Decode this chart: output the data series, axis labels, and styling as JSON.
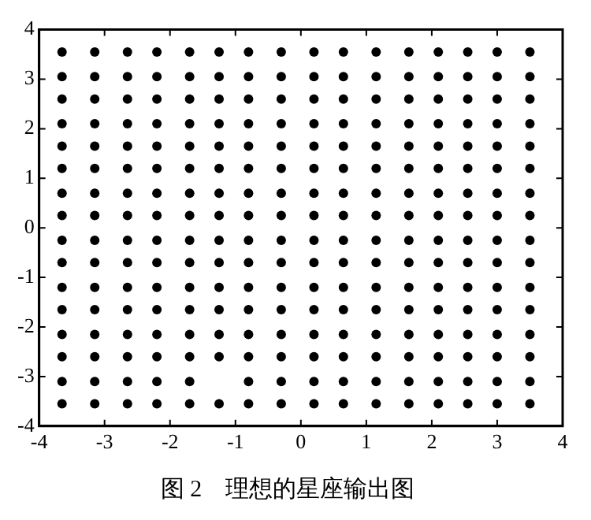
{
  "chart_data": {
    "type": "scatter",
    "title": "图 2　理想的星座输出图",
    "marker": "circle",
    "grid": false,
    "legend": false,
    "xlim": [
      -4,
      4
    ],
    "xticks": [
      -4,
      -3,
      -2,
      -1,
      0,
      1,
      2,
      3,
      4
    ],
    "ylim": [
      -4,
      4
    ],
    "yticks": [
      -4,
      -3,
      -2,
      -1,
      0,
      1,
      2,
      3,
      4
    ],
    "series": [
      {
        "color": "#000000",
        "x": [
          -3.65,
          -3.15,
          -2.65,
          -2.2,
          -1.7,
          -1.25,
          -0.8,
          -0.3,
          0.2,
          0.65,
          1.15,
          1.65,
          2.1,
          2.55,
          3.0,
          3.5
        ],
        "values": [
          3.55,
          3.55,
          3.55,
          3.55,
          3.55,
          3.55,
          3.55,
          3.55,
          3.55,
          3.55,
          3.55,
          3.55,
          3.55,
          3.55,
          3.55,
          3.55
        ]
      },
      {
        "color": "#000000",
        "x": [
          -3.65,
          -3.15,
          -2.65,
          -2.2,
          -1.7,
          -1.25,
          -0.8,
          -0.3,
          0.2,
          0.65,
          1.15,
          1.65,
          2.1,
          2.55,
          3.0,
          3.5
        ],
        "values": [
          3.05,
          3.05,
          3.05,
          3.05,
          3.05,
          3.05,
          3.05,
          3.05,
          3.05,
          3.05,
          3.05,
          3.05,
          3.05,
          3.05,
          3.05,
          3.05
        ]
      },
      {
        "color": "#000000",
        "x": [
          -3.65,
          -3.15,
          -2.65,
          -2.2,
          -1.7,
          -1.25,
          -0.8,
          -0.3,
          0.2,
          0.65,
          1.15,
          1.65,
          2.1,
          2.55,
          3.0,
          3.5
        ],
        "values": [
          2.6,
          2.6,
          2.6,
          2.6,
          2.6,
          2.6,
          2.6,
          2.6,
          2.6,
          2.6,
          2.6,
          2.6,
          2.6,
          2.6,
          2.6,
          2.6
        ]
      },
      {
        "color": "#000000",
        "x": [
          -3.65,
          -3.15,
          -2.65,
          -2.2,
          -1.7,
          -1.25,
          -0.8,
          -0.3,
          0.2,
          0.65,
          1.15,
          1.65,
          2.1,
          2.55,
          3.0,
          3.5
        ],
        "values": [
          2.1,
          2.1,
          2.1,
          2.1,
          2.1,
          2.1,
          2.1,
          2.1,
          2.1,
          2.1,
          2.1,
          2.1,
          2.1,
          2.1,
          2.1,
          2.1
        ]
      },
      {
        "color": "#000000",
        "x": [
          -3.65,
          -3.15,
          -2.65,
          -2.2,
          -1.7,
          -1.25,
          -0.8,
          -0.3,
          0.2,
          0.65,
          1.15,
          1.65,
          2.1,
          2.55,
          3.0,
          3.5
        ],
        "values": [
          1.65,
          1.65,
          1.65,
          1.65,
          1.65,
          1.65,
          1.65,
          1.65,
          1.65,
          1.65,
          1.65,
          1.65,
          1.65,
          1.65,
          1.65,
          1.65
        ]
      },
      {
        "color": "#000000",
        "x": [
          -3.65,
          -3.15,
          -2.65,
          -2.2,
          -1.7,
          -1.25,
          -0.8,
          -0.3,
          0.2,
          0.65,
          1.15,
          1.65,
          2.1,
          2.55,
          3.0,
          3.5
        ],
        "values": [
          1.2,
          1.2,
          1.2,
          1.2,
          1.2,
          1.2,
          1.2,
          1.2,
          1.2,
          1.2,
          1.2,
          1.2,
          1.2,
          1.2,
          1.2,
          1.2
        ]
      },
      {
        "color": "#000000",
        "x": [
          -3.65,
          -3.15,
          -2.65,
          -2.2,
          -1.7,
          -1.25,
          -0.8,
          -0.3,
          0.2,
          0.65,
          1.15,
          1.65,
          2.1,
          2.55,
          3.0,
          3.5
        ],
        "values": [
          0.7,
          0.7,
          0.7,
          0.7,
          0.7,
          0.7,
          0.7,
          0.7,
          0.7,
          0.7,
          0.7,
          0.7,
          0.7,
          0.7,
          0.7,
          0.7
        ]
      },
      {
        "color": "#000000",
        "x": [
          -3.65,
          -3.15,
          -2.65,
          -2.2,
          -1.7,
          -1.25,
          -0.8,
          -0.3,
          0.2,
          0.65,
          1.15,
          1.65,
          2.1,
          2.55,
          3.0,
          3.5
        ],
        "values": [
          0.25,
          0.25,
          0.25,
          0.25,
          0.25,
          0.25,
          0.25,
          0.25,
          0.25,
          0.25,
          0.25,
          0.25,
          0.25,
          0.25,
          0.25,
          0.25
        ]
      },
      {
        "color": "#000000",
        "x": [
          -3.65,
          -3.15,
          -2.65,
          -2.2,
          -1.7,
          -1.25,
          -0.8,
          -0.3,
          0.2,
          0.65,
          1.15,
          1.65,
          2.1,
          2.55,
          3.0,
          3.5
        ],
        "values": [
          -0.25,
          -0.25,
          -0.25,
          -0.25,
          -0.25,
          -0.25,
          -0.25,
          -0.25,
          -0.25,
          -0.25,
          -0.25,
          -0.25,
          -0.25,
          -0.25,
          -0.25,
          -0.25
        ]
      },
      {
        "color": "#000000",
        "x": [
          -3.65,
          -3.15,
          -2.65,
          -2.2,
          -1.7,
          -1.25,
          -0.8,
          -0.3,
          0.2,
          0.65,
          1.15,
          1.65,
          2.1,
          2.55,
          3.0,
          3.5
        ],
        "values": [
          -0.7,
          -0.7,
          -0.7,
          -0.7,
          -0.7,
          -0.7,
          -0.7,
          -0.7,
          -0.7,
          -0.7,
          -0.7,
          -0.7,
          -0.7,
          -0.7,
          -0.7,
          -0.7
        ]
      },
      {
        "color": "#000000",
        "x": [
          -3.65,
          -3.15,
          -2.65,
          -2.2,
          -1.7,
          -1.25,
          -0.8,
          -0.3,
          0.2,
          0.65,
          1.15,
          1.65,
          2.1,
          2.55,
          3.0,
          3.5
        ],
        "values": [
          -1.2,
          -1.2,
          -1.2,
          -1.2,
          -1.2,
          -1.2,
          -1.2,
          -1.2,
          -1.2,
          -1.2,
          -1.2,
          -1.2,
          -1.2,
          -1.2,
          -1.2,
          -1.2
        ]
      },
      {
        "color": "#000000",
        "x": [
          -3.65,
          -3.15,
          -2.65,
          -2.2,
          -1.7,
          -1.25,
          -0.8,
          -0.3,
          0.2,
          0.65,
          1.15,
          1.65,
          2.1,
          2.55,
          3.0,
          3.5
        ],
        "values": [
          -1.65,
          -1.65,
          -1.65,
          -1.65,
          -1.65,
          -1.65,
          -1.65,
          -1.65,
          -1.65,
          -1.65,
          -1.65,
          -1.65,
          -1.65,
          -1.65,
          -1.65,
          -1.65
        ]
      },
      {
        "color": "#000000",
        "x": [
          -3.65,
          -3.15,
          -2.65,
          -2.2,
          -1.7,
          -1.25,
          -0.8,
          -0.3,
          0.2,
          0.65,
          1.15,
          1.65,
          2.1,
          2.55,
          3.0,
          3.5
        ],
        "values": [
          -2.15,
          -2.15,
          -2.15,
          -2.15,
          -2.15,
          -2.15,
          -2.15,
          -2.15,
          -2.15,
          -2.15,
          -2.15,
          -2.15,
          -2.15,
          -2.15,
          -2.15,
          -2.15
        ]
      },
      {
        "color": "#000000",
        "x": [
          -3.65,
          -3.15,
          -2.65,
          -2.2,
          -1.7,
          -1.25,
          -0.8,
          -0.3,
          0.2,
          0.65,
          1.15,
          1.65,
          2.1,
          2.55,
          3.0,
          3.5
        ],
        "values": [
          -2.6,
          -2.6,
          -2.6,
          -2.6,
          -2.6,
          -2.6,
          -2.6,
          -2.6,
          -2.6,
          -2.6,
          -2.6,
          -2.6,
          -2.6,
          -2.6,
          -2.6,
          -2.6
        ]
      },
      {
        "color": "#000000",
        "x": [
          -3.65,
          -3.15,
          -2.65,
          -2.2,
          -1.7,
          -0.8,
          -0.3,
          0.2,
          0.65,
          1.15,
          1.65,
          2.1,
          2.55,
          3.0,
          3.5
        ],
        "values": [
          -3.1,
          -3.1,
          -3.1,
          -3.1,
          -3.1,
          -3.1,
          -3.1,
          -3.1,
          -3.1,
          -3.1,
          -3.1,
          -3.1,
          -3.1,
          -3.1,
          -3.1
        ]
      },
      {
        "color": "#000000",
        "x": [
          -3.65,
          -3.15,
          -2.65,
          -2.2,
          -1.7,
          -1.25,
          -0.8,
          -0.3,
          0.2,
          0.65,
          1.15,
          1.65,
          2.1,
          2.55,
          3.0,
          3.5
        ],
        "values": [
          -3.55,
          -3.55,
          -3.55,
          -3.55,
          -3.55,
          -3.55,
          -3.55,
          -3.55,
          -3.55,
          -3.55,
          -3.55,
          -3.55,
          -3.55,
          -3.55,
          -3.55,
          -3.55
        ]
      }
    ]
  }
}
